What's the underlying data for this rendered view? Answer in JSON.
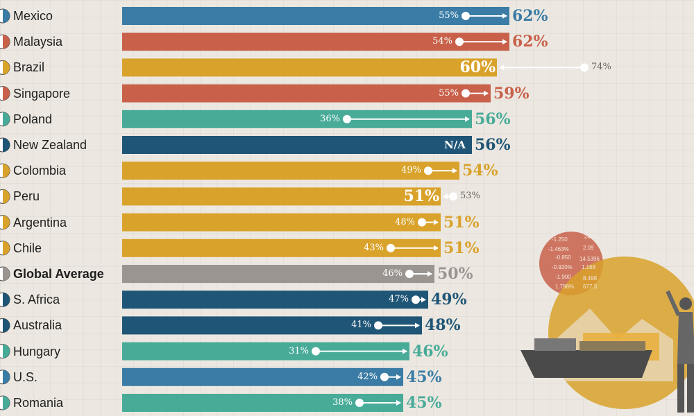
{
  "chart_data": {
    "type": "bar",
    "categories": [
      "Mexico",
      "Malaysia",
      "Brazil",
      "Singapore",
      "Poland",
      "New Zealand",
      "Colombia",
      "Peru",
      "Argentina",
      "Chile",
      "Global Average",
      "S. Africa",
      "Australia",
      "Hungary",
      "U.S.",
      "Romania"
    ],
    "series": [
      {
        "values": [
          62,
          62,
          60,
          59,
          56,
          56,
          54,
          51,
          51,
          51,
          50,
          49,
          48,
          46,
          45,
          45
        ]
      },
      {
        "values": [
          55,
          54,
          74,
          55,
          36,
          null,
          49,
          53,
          48,
          43,
          46,
          47,
          41,
          31,
          42,
          38
        ]
      }
    ],
    "value_labels": [
      "62%",
      "62%",
      "60%",
      "59%",
      "56%",
      "56%",
      "54%",
      "51%",
      "51%",
      "51%",
      "50%",
      "49%",
      "48%",
      "46%",
      "45%",
      "45%"
    ],
    "previous_labels": [
      "55%",
      "54%",
      "74%",
      "55%",
      "36%",
      "N/A",
      "49%",
      "53%",
      "48%",
      "43%",
      "46%",
      "47%",
      "41%",
      "31%",
      "42%",
      "38%"
    ],
    "bar_colors": [
      "#3a7ca5",
      "#c8604a",
      "#d9a22b",
      "#c8604a",
      "#47ab98",
      "#1f5576",
      "#d9a22b",
      "#d9a22b",
      "#d9a22b",
      "#d9a22b",
      "#9a9590",
      "#1f5576",
      "#1f5576",
      "#47ab98",
      "#3a7ca5",
      "#47ab98"
    ],
    "highlight": "Global Average"
  },
  "deco_numbers": [
    "-1.250",
    "24.",
    "-1.463%",
    "2.09",
    "-0.850",
    "14.5396",
    "-0.920%",
    "1.168",
    "-1.900",
    "8.498",
    "1.796%",
    "677.3"
  ]
}
